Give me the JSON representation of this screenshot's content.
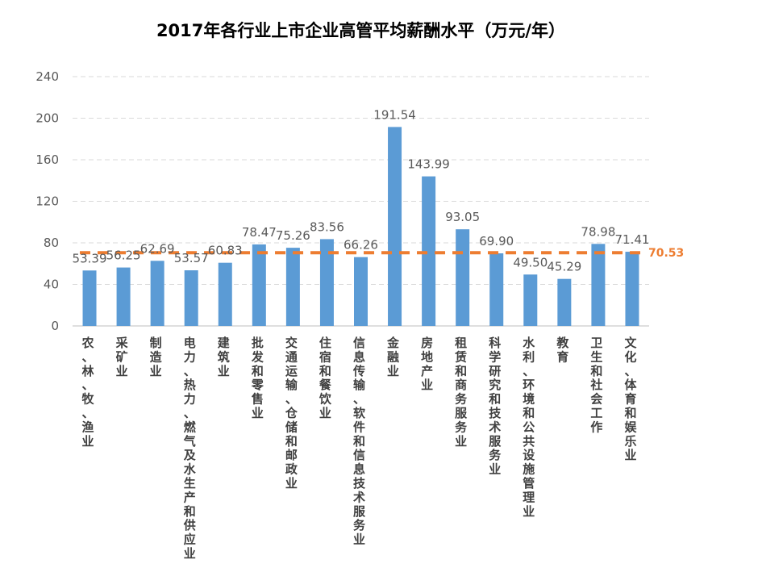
{
  "chart_data": {
    "type": "bar",
    "title": "2017年各行业上市企业高管平均薪酬水平（万元/年）",
    "xlabel": "",
    "ylabel": "",
    "ylim": [
      0,
      240
    ],
    "yticks": [
      0,
      40,
      80,
      120,
      160,
      200,
      240
    ],
    "grid": true,
    "categories": [
      "农、林、牧、渔业",
      "采矿业",
      "制造业",
      "电力、热力、燃气及水生产和供应业",
      "建筑业",
      "批发和零售业",
      "交通运输、仓储和邮政业",
      "住宿和餐饮业",
      "信息传输、软件和信息技术服务业",
      "金融业",
      "房地产业",
      "租赁和商务服务业",
      "科学研究和技术服务业",
      "水利、环境和公共设施管理业",
      "教育",
      "卫生和社会工作",
      "文化、体育和娱乐业"
    ],
    "series": [
      {
        "values": [
          53.39,
          56.25,
          62.69,
          53.57,
          60.83,
          78.47,
          75.26,
          83.56,
          66.26,
          191.54,
          143.99,
          93.05,
          69.9,
          49.5,
          45.29,
          78.98,
          71.41
        ]
      }
    ],
    "value_labels": [
      "53.39",
      "56.25",
      "62.69",
      "53.57",
      "60.83",
      "78.47",
      "75.26",
      "83.56",
      "66.26",
      "191.54",
      "143.99",
      "93.05",
      "69.90",
      "49.50",
      "45.29",
      "78.98",
      "71.41"
    ],
    "average_line": {
      "value": 70.53,
      "label": "70.53"
    },
    "colors": {
      "bar": "#5B9BD5",
      "average": "#ED7D31",
      "grid": "#D9D9D9",
      "axis": "#BFBFBF"
    }
  }
}
